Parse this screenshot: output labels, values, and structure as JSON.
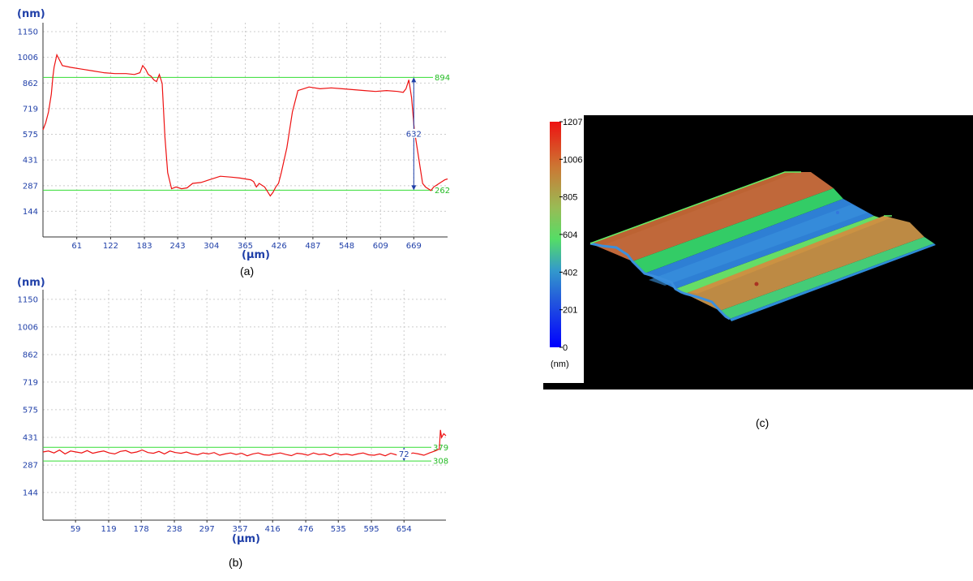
{
  "colors": {
    "profile_line": "#ee1111",
    "level_line": "#33dd33",
    "axis_text": "#1f3fa8",
    "grid": "#cccccc",
    "surface_background": "#000000"
  },
  "chart_data": [
    {
      "id": "a",
      "type": "line",
      "caption": "(a)",
      "ylabel": "(nm)",
      "xlabel": "(µm)",
      "yticks": [
        "1150",
        "1006",
        "862",
        "719",
        "575",
        "431",
        "287",
        "144"
      ],
      "xticks": [
        "61",
        "122",
        "183",
        "243",
        "304",
        "365",
        "426",
        "487",
        "548",
        "609",
        "669"
      ],
      "xlim": [
        0,
        730
      ],
      "ylim": [
        0,
        1200
      ],
      "grid": true,
      "reference_lines": [
        {
          "value": 894,
          "label": "894"
        },
        {
          "value": 262,
          "label": "262"
        }
      ],
      "difference": {
        "x": 669,
        "label": "632"
      },
      "series": [
        {
          "x": [
            0,
            5,
            10,
            15,
            18,
            20,
            25,
            35,
            50,
            70,
            90,
            110,
            130,
            150,
            165,
            175,
            180,
            185,
            190,
            195,
            200,
            205,
            210,
            215,
            220,
            225,
            232,
            240,
            250,
            260,
            270,
            285,
            300,
            320,
            340,
            355,
            365,
            375,
            380,
            385,
            390,
            395,
            400,
            410,
            415,
            420,
            425,
            430,
            440,
            450,
            460,
            470,
            480,
            500,
            520,
            540,
            560,
            580,
            600,
            620,
            640,
            650,
            655,
            660,
            665,
            670,
            675,
            680,
            685,
            690,
            695,
            700,
            705,
            710,
            715,
            720,
            725,
            730
          ],
          "y": [
            600,
            640,
            700,
            800,
            900,
            950,
            1020,
            960,
            950,
            940,
            930,
            920,
            915,
            915,
            910,
            920,
            960,
            940,
            910,
            900,
            880,
            870,
            910,
            860,
            560,
            360,
            270,
            280,
            270,
            275,
            300,
            305,
            320,
            340,
            335,
            330,
            325,
            320,
            310,
            280,
            300,
            290,
            280,
            230,
            250,
            280,
            300,
            360,
            500,
            700,
            820,
            830,
            840,
            830,
            835,
            830,
            825,
            820,
            815,
            820,
            815,
            810,
            830,
            880,
            780,
            600,
            500,
            400,
            300,
            280,
            270,
            260,
            280,
            290,
            300,
            310,
            320,
            325
          ]
        }
      ]
    },
    {
      "id": "b",
      "type": "line",
      "caption": "(b)",
      "ylabel": "(nm)",
      "xlabel": "(µm)",
      "yticks": [
        "1150",
        "1006",
        "862",
        "719",
        "575",
        "431",
        "287",
        "144"
      ],
      "xticks": [
        "59",
        "119",
        "178",
        "238",
        "297",
        "357",
        "416",
        "476",
        "535",
        "595",
        "654"
      ],
      "xlim": [
        0,
        730
      ],
      "ylim": [
        0,
        1200
      ],
      "grid": true,
      "reference_lines": [
        {
          "value": 379,
          "label": "379"
        },
        {
          "value": 308,
          "label": "308"
        }
      ],
      "difference": {
        "x": 654,
        "label": "72"
      },
      "series": [
        {
          "x": [
            0,
            10,
            20,
            30,
            40,
            50,
            60,
            70,
            80,
            90,
            100,
            110,
            120,
            130,
            140,
            150,
            160,
            170,
            180,
            190,
            200,
            210,
            220,
            230,
            240,
            250,
            260,
            270,
            280,
            290,
            300,
            310,
            320,
            330,
            340,
            350,
            360,
            370,
            380,
            390,
            400,
            410,
            420,
            430,
            440,
            450,
            460,
            470,
            480,
            490,
            500,
            510,
            520,
            530,
            540,
            550,
            560,
            570,
            580,
            590,
            600,
            610,
            620,
            630,
            640,
            650,
            660,
            670,
            680,
            690,
            700,
            710,
            718,
            720,
            722,
            726,
            730
          ],
          "y": [
            355,
            360,
            350,
            365,
            345,
            360,
            355,
            350,
            362,
            348,
            355,
            360,
            350,
            345,
            358,
            362,
            350,
            355,
            365,
            352,
            348,
            358,
            345,
            360,
            352,
            348,
            355,
            345,
            340,
            350,
            345,
            352,
            338,
            345,
            350,
            342,
            348,
            335,
            345,
            350,
            340,
            338,
            345,
            350,
            342,
            336,
            348,
            345,
            338,
            350,
            342,
            345,
            335,
            348,
            340,
            344,
            338,
            345,
            350,
            340,
            338,
            345,
            335,
            348,
            340,
            330,
            340,
            350,
            345,
            338,
            350,
            360,
            370,
            470,
            430,
            450,
            440
          ]
        }
      ]
    },
    {
      "id": "c",
      "type": "surface",
      "caption": "(c)",
      "colorbar": {
        "ticks": [
          "1207",
          "1006",
          "805",
          "604",
          "402",
          "201",
          "0"
        ],
        "unit": "(nm)",
        "min": 0,
        "max": 1207
      }
    }
  ]
}
